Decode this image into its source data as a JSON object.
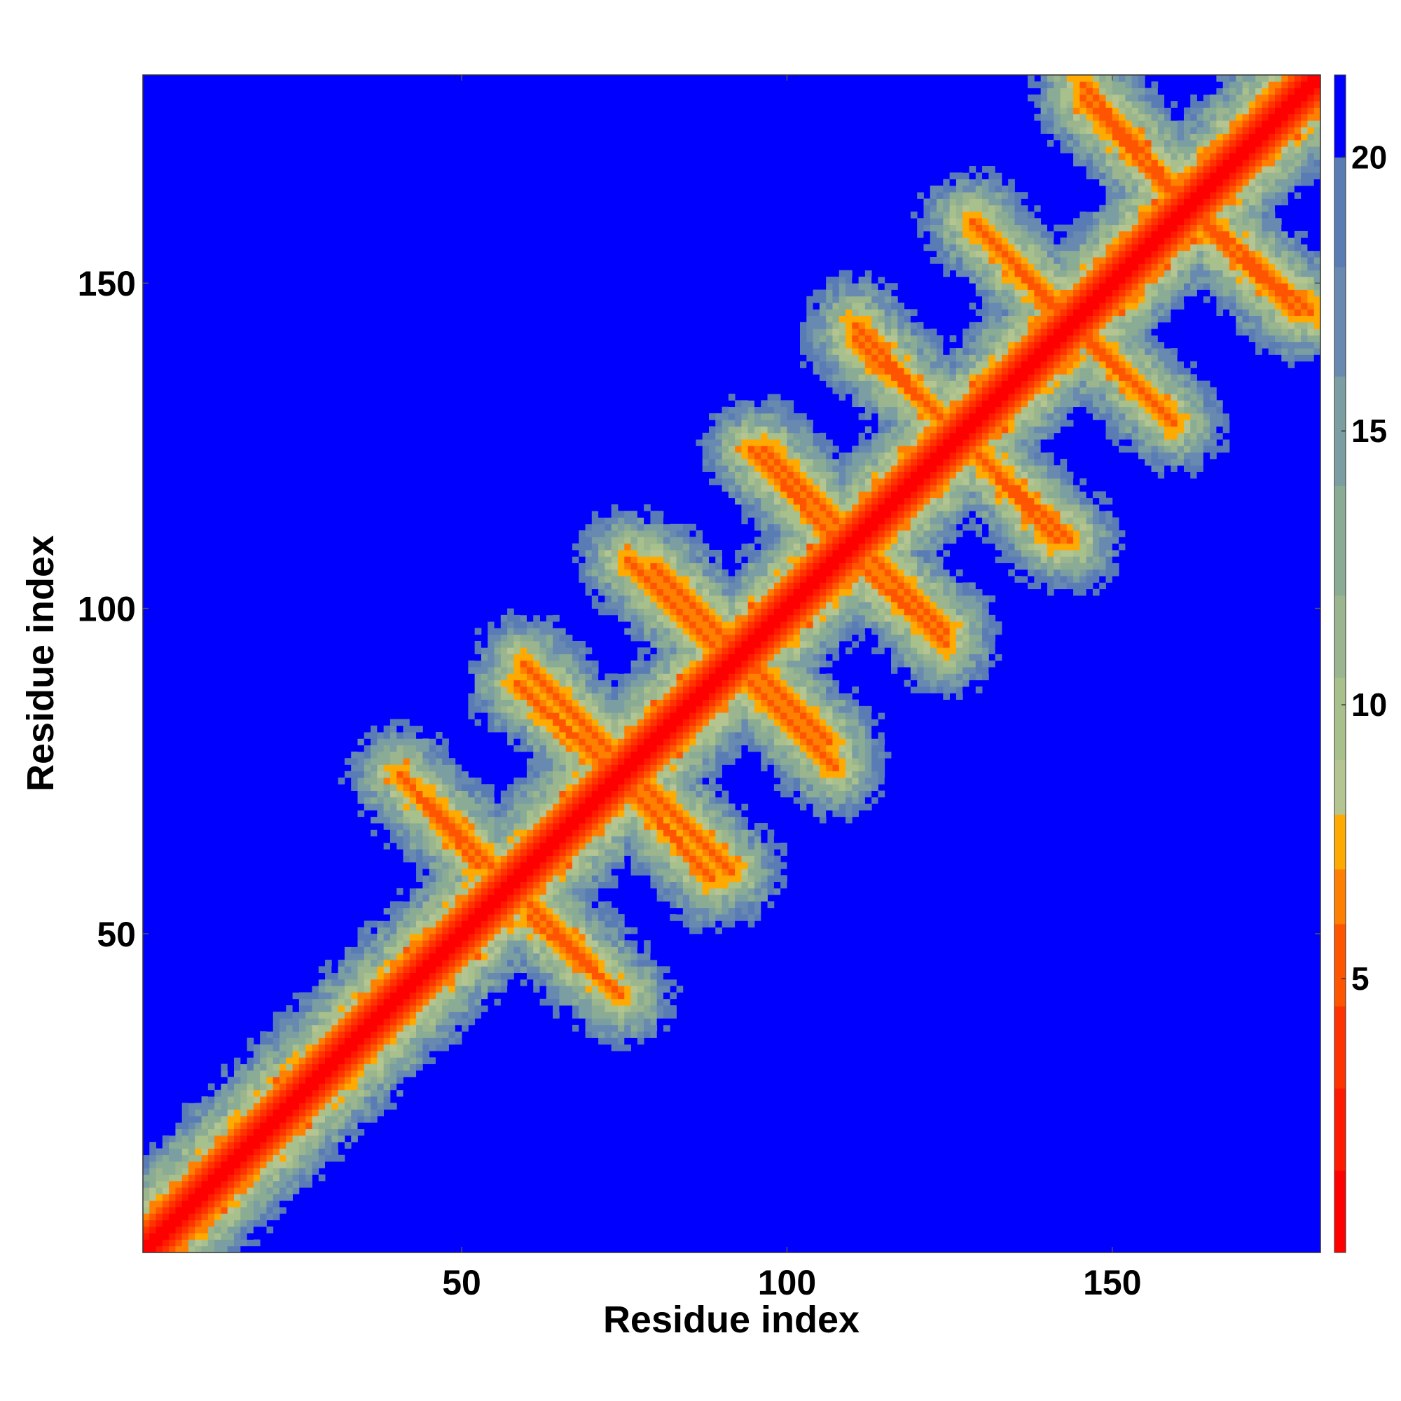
{
  "chart_data": {
    "type": "heatmap",
    "title": "",
    "xlabel": "Residue index",
    "ylabel": "Residue index",
    "n_residues": 181,
    "xlim": [
      1,
      181
    ],
    "ylim": [
      1,
      181
    ],
    "x_ticks": [
      50,
      100,
      150
    ],
    "y_ticks": [
      50,
      100,
      150
    ],
    "colorbar": {
      "range": [
        0,
        21.5
      ],
      "ticks": [
        5,
        10,
        15,
        20
      ],
      "levels": [
        {
          "max": 1.5,
          "color": "#ff0000"
        },
        {
          "max": 3,
          "color": "#ff1a00"
        },
        {
          "max": 4.5,
          "color": "#ff3300"
        },
        {
          "max": 6,
          "color": "#ff5500"
        },
        {
          "max": 7,
          "color": "#ff8000"
        },
        {
          "max": 8,
          "color": "#ffaa00"
        },
        {
          "max": 9,
          "color": "#b5c592"
        },
        {
          "max": 10.5,
          "color": "#a8c08c"
        },
        {
          "max": 12,
          "color": "#9bb58e"
        },
        {
          "max": 14,
          "color": "#8aac94"
        },
        {
          "max": 16,
          "color": "#7a9ea2"
        },
        {
          "max": 18,
          "color": "#6889b0"
        },
        {
          "max": 20,
          "color": "#5a7cb5"
        },
        {
          "max": 21.5,
          "color": "#0000ff"
        }
      ]
    },
    "series": [
      {
        "description": "Distance map contact bands (residue i, j ranges)",
        "diagonal_width": 3,
        "antiparallel_bands": [
          {
            "i": [
              40,
              52
            ],
            "j": [
              74,
              60
            ]
          },
          {
            "i": [
              58,
              70
            ],
            "j": [
              56,
              44
            ]
          },
          {
            "i": [
              59,
              75
            ],
            "j": [
              91,
              75
            ]
          },
          {
            "i": [
              75,
              90
            ],
            "j": [
              107,
              92
            ]
          },
          {
            "i": [
              75,
              88
            ],
            "j": [
              72,
              58
            ]
          },
          {
            "i": [
              94,
              107
            ],
            "j": [
              124,
              110
            ]
          },
          {
            "i": [
              92,
              106
            ],
            "j": [
              93,
              79
            ]
          },
          {
            "i": [
              110,
              123
            ],
            "j": [
              143,
              129
            ]
          },
          {
            "i": [
              110,
              124
            ],
            "j": [
              110,
              96
            ]
          },
          {
            "i": [
              128,
              143
            ],
            "j": [
              159,
              144
            ]
          },
          {
            "i": [
              126,
              141
            ],
            "j": [
              126,
              110
            ]
          },
          {
            "i": [
              145,
              158
            ],
            "j": [
              178,
              164
            ]
          },
          {
            "i": [
              143,
              158
            ],
            "j": [
              143,
              129
            ]
          },
          {
            "i": [
              163,
              180
            ],
            "j": [
              160,
              145
            ]
          }
        ]
      }
    ]
  }
}
